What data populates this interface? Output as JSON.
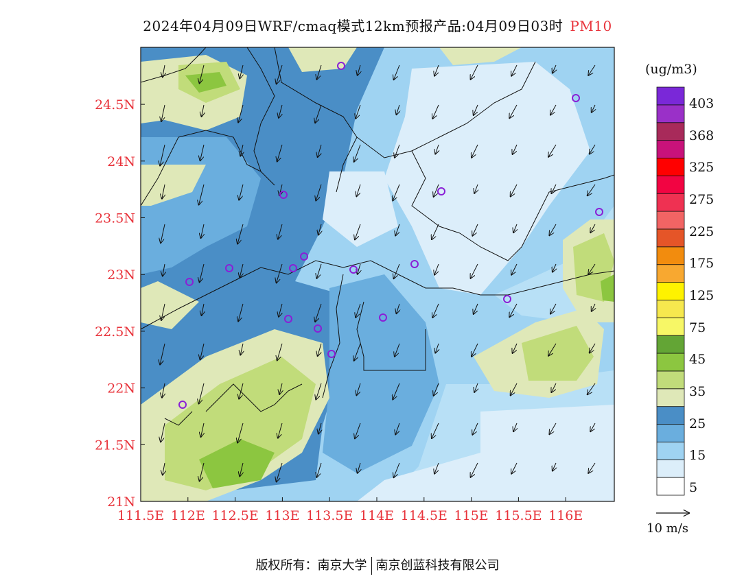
{
  "title": {
    "text": "2024年04月09日WRF/cmaq模式12km预报产品:04月09日03时",
    "variable": "PM10"
  },
  "axes": {
    "x_ticks": [
      "111.5E",
      "112E",
      "112.5E",
      "113E",
      "113.5E",
      "114E",
      "114.5E",
      "115E",
      "115.5E",
      "116E"
    ],
    "y_ticks": [
      "21N",
      "21.5N",
      "22N",
      "22.5N",
      "23N",
      "23.5N",
      "24N",
      "24.5N"
    ],
    "tick_color": "#e8333b"
  },
  "colorbar": {
    "unit": "(ug/m3)",
    "levels": [
      {
        "label": "",
        "color": "#ffffff"
      },
      {
        "label": "5",
        "color": "#dceefa"
      },
      {
        "label": "15",
        "color": "#9fd3f2"
      },
      {
        "label": "25",
        "color": "#6aaede"
      },
      {
        "label": "",
        "color": "#4a8ec6"
      },
      {
        "label": "35",
        "color": "#dfe8b8"
      },
      {
        "label": "45",
        "color": "#c1dc7a"
      },
      {
        "label": "75",
        "color": "#8cc640"
      },
      {
        "label": "125",
        "color": "#63a535"
      },
      {
        "label": "175",
        "color": "#f7f766"
      },
      {
        "label": "225",
        "color": "#f6e84e"
      },
      {
        "label": "275",
        "color": "#fef200"
      },
      {
        "label": "325",
        "color": "#f8a830"
      },
      {
        "label": "",
        "color": "#f28c0e"
      },
      {
        "label": "",
        "color": "#e55528"
      },
      {
        "label": "",
        "color": "#f26464"
      },
      {
        "label": "",
        "color": "#ef3152"
      },
      {
        "label": "368",
        "color": "#f20442"
      },
      {
        "label": "403",
        "color": "#ff0000"
      },
      {
        "label": "",
        "color": "#c8127a"
      },
      {
        "label": "",
        "color": "#a82a5a"
      },
      {
        "label": "",
        "color": "#9a30c8"
      },
      {
        "label": "",
        "color": "#7a28d8"
      }
    ],
    "printed_labels": [
      "403",
      "368",
      "325",
      "275",
      "225",
      "175",
      "125",
      "75",
      "45",
      "35",
      "25",
      "15",
      "5"
    ]
  },
  "wind_reference": {
    "label": "10  m/s"
  },
  "copyright": {
    "left": "版权所有：南京大学",
    "right": "南京创蓝科技有限公司"
  },
  "stations_count": 18
}
